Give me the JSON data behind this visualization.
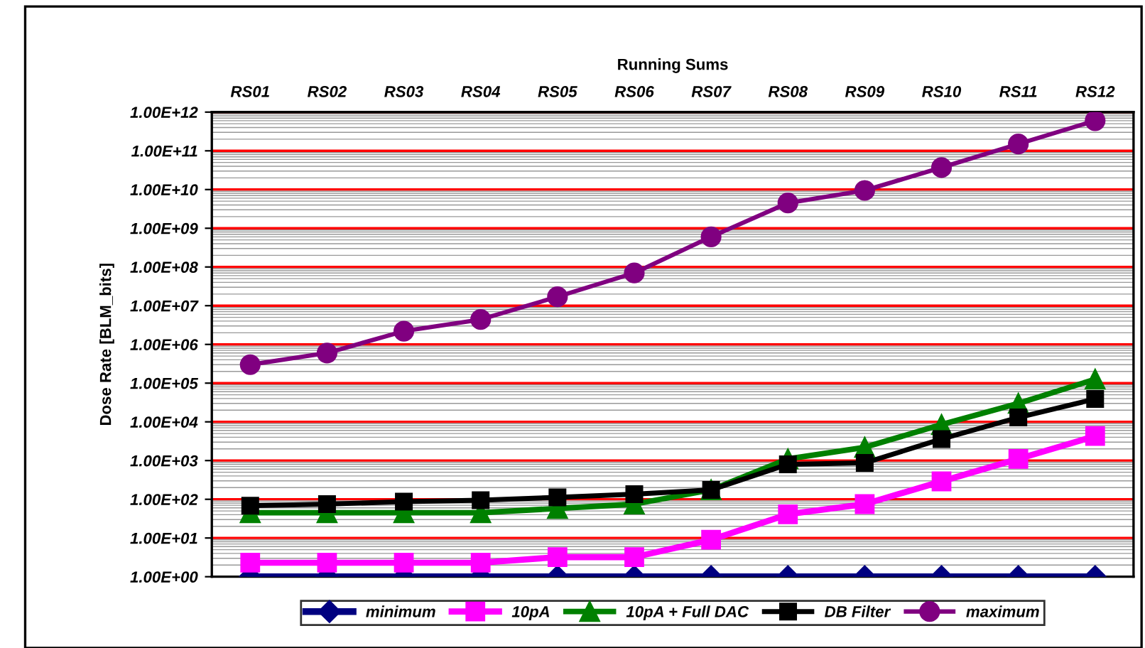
{
  "chart_data": {
    "type": "line",
    "xlabel": "Running Sums",
    "ylabel": "Dose Rate [BLM_bits]",
    "categories": [
      "RS01",
      "RS02",
      "RS03",
      "RS04",
      "RS05",
      "RS06",
      "RS07",
      "RS08",
      "RS09",
      "RS10",
      "RS11",
      "RS12"
    ],
    "log": true,
    "ylim": [
      1,
      1000000000000.0
    ],
    "yticks": [
      {
        "value": 1,
        "label": "1.00E+00"
      },
      {
        "value": 10,
        "label": "1.00E+01"
      },
      {
        "value": 100,
        "label": "1.00E+02"
      },
      {
        "value": 1000,
        "label": "1.00E+03"
      },
      {
        "value": 10000,
        "label": "1.00E+04"
      },
      {
        "value": 100000,
        "label": "1.00E+05"
      },
      {
        "value": 1000000,
        "label": "1.00E+06"
      },
      {
        "value": 10000000,
        "label": "1.00E+07"
      },
      {
        "value": 100000000,
        "label": "1.00E+08"
      },
      {
        "value": 1000000000,
        "label": "1.00E+09"
      },
      {
        "value": 10000000000,
        "label": "1.00E+10"
      },
      {
        "value": 100000000000,
        "label": "1.00E+11"
      },
      {
        "value": 1000000000000,
        "label": "1.00E+12"
      }
    ],
    "grid": "y",
    "legend": "bottom",
    "series": [
      {
        "name": "minimum",
        "color": "#000080",
        "marker": "diamond",
        "values": [
          1,
          1,
          1,
          1,
          1,
          1,
          1,
          1,
          1,
          1,
          1,
          1
        ]
      },
      {
        "name": "10pA",
        "color": "#ff00ff",
        "marker": "square",
        "values": [
          2.3,
          2.3,
          2.3,
          2.3,
          3.2,
          3.2,
          9,
          41,
          75,
          290,
          1100,
          4300
        ]
      },
      {
        "name": "10pA + Full DAC",
        "color": "#008000",
        "marker": "triangle",
        "values": [
          45,
          45,
          45,
          45,
          58,
          75,
          175,
          1100,
          2200,
          8500,
          30000,
          126000
        ]
      },
      {
        "name": "DB Filter",
        "color": "#000000",
        "marker": "square",
        "values": [
          68,
          75,
          87,
          95,
          112,
          135,
          175,
          800,
          870,
          3600,
          13000,
          39000
        ]
      },
      {
        "name": "maximum",
        "color": "#800080",
        "marker": "circle",
        "values": [
          300000,
          600000,
          2200000,
          4400000,
          17000000,
          70000000,
          600000000,
          4500000000,
          9500000000,
          37000000000,
          150000000000,
          600000000000
        ]
      }
    ]
  }
}
